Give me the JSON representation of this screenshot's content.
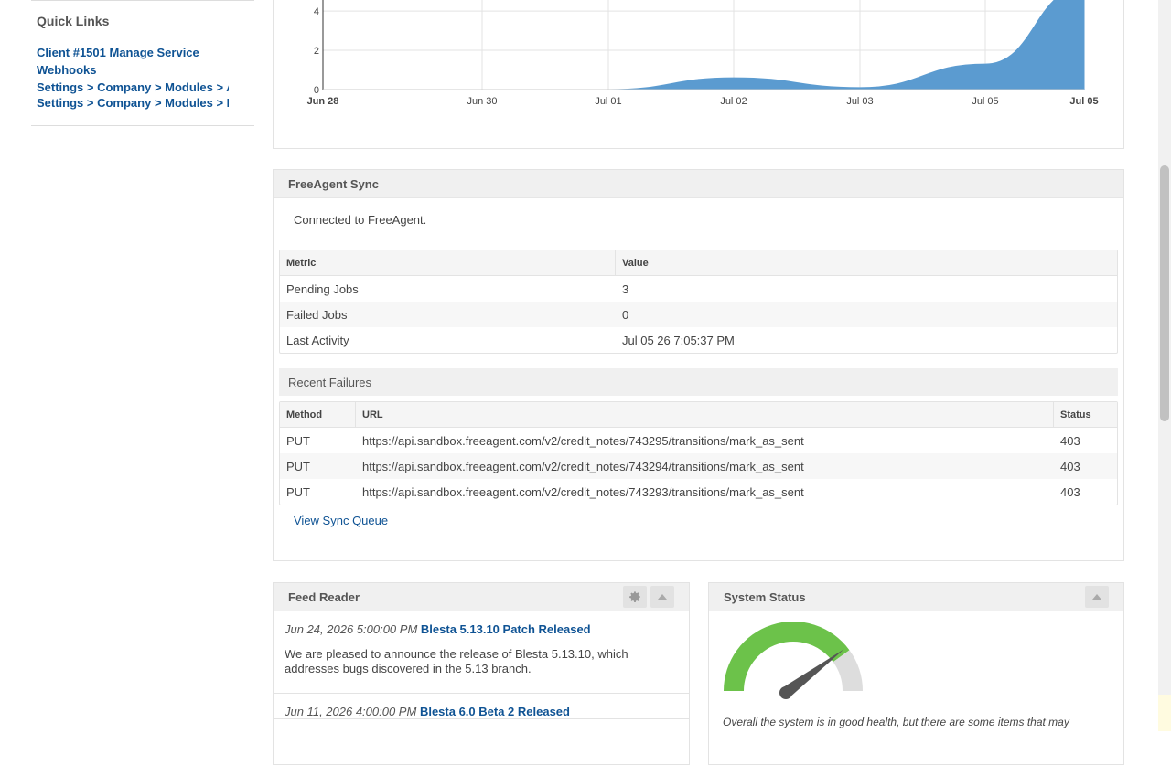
{
  "sidebar": {
    "quick_links_title": "Quick Links",
    "links": [
      "Client #1501 Manage Service",
      "Webhooks",
      "Settings > Company > Modules > A",
      "Settings > Company > Modules > M"
    ]
  },
  "chart_data": {
    "type": "area",
    "x": [
      "Jun 28",
      "Jun 30",
      "Jul 01",
      "Jul 02",
      "Jul 03",
      "Jul 05",
      "Jul 05"
    ],
    "values": [
      0,
      0,
      0,
      0.6,
      0.1,
      1.3,
      5.2
    ],
    "y_ticks": [
      "0",
      "2",
      "4"
    ],
    "ylim": [
      0,
      5
    ],
    "grid": true,
    "colors": {
      "fill": "#5b9bd0"
    }
  },
  "freeagent": {
    "title": "FreeAgent Sync",
    "connected": "Connected to FreeAgent.",
    "metric_header": "Metric",
    "value_header": "Value",
    "metrics": [
      {
        "name": "Pending Jobs",
        "value": "3"
      },
      {
        "name": "Failed Jobs",
        "value": "0"
      },
      {
        "name": "Last Activity",
        "value": "Jul 05 26 7:05:37 PM"
      }
    ],
    "recent_failures": "Recent Failures",
    "fail_headers": {
      "method": "Method",
      "url": "URL",
      "status": "Status"
    },
    "failures": [
      {
        "method": "PUT",
        "url": "https://api.sandbox.freeagent.com/v2/credit_notes/743295/transitions/mark_as_sent",
        "status": "403"
      },
      {
        "method": "PUT",
        "url": "https://api.sandbox.freeagent.com/v2/credit_notes/743294/transitions/mark_as_sent",
        "status": "403"
      },
      {
        "method": "PUT",
        "url": "https://api.sandbox.freeagent.com/v2/credit_notes/743293/transitions/mark_as_sent",
        "status": "403"
      }
    ],
    "view_queue": "View Sync Queue"
  },
  "feed": {
    "title": "Feed Reader",
    "items": [
      {
        "date": "Jun 24, 2026 5:00:00 PM",
        "title": "Blesta 5.13.10 Patch Released",
        "desc": "We are pleased to announce the release of Blesta 5.13.10, which addresses bugs discovered in the 5.13 branch."
      },
      {
        "date": "Jun 11, 2026 4:00:00 PM",
        "title": "Blesta 6.0 Beta 2 Released",
        "desc": ""
      }
    ]
  },
  "system_status": {
    "title": "System Status",
    "health_level": 0.8,
    "colors": {
      "good": "#6cc24a",
      "rest": "#dddddd",
      "needle": "#555555"
    },
    "text": "Overall the system is in good health, but there are some items that may"
  },
  "icons": {
    "settings": "gear-icon",
    "collapse": "chevron-up-icon"
  }
}
